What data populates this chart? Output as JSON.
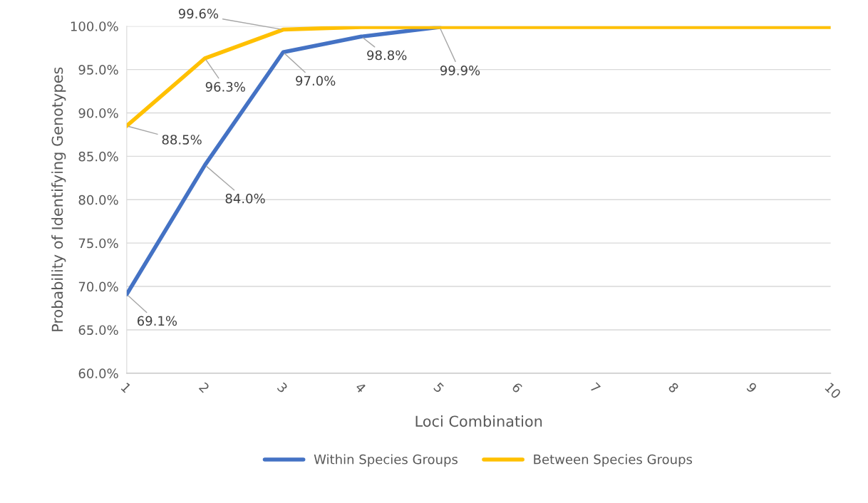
{
  "chart_data": {
    "type": "line",
    "xlabel": "Loci Combination",
    "ylabel": "Probability of Identifying Genotypes",
    "categories": [
      "1",
      "2",
      "3",
      "4",
      "5",
      "6",
      "7",
      "8",
      "9",
      "10"
    ],
    "series": [
      {
        "name": "Within Species Groups",
        "color": "#4472c4",
        "values": [
          69.1,
          84.0,
          97.0,
          98.8,
          99.9,
          null,
          null,
          null,
          null,
          null
        ],
        "value_labels": [
          "69.1%",
          "84.0%",
          "97.0%",
          "98.8%",
          "99.9%",
          null,
          null,
          null,
          null,
          null
        ]
      },
      {
        "name": "Between Species Groups",
        "color": "#ffc000",
        "values": [
          88.5,
          96.3,
          99.6,
          99.9,
          99.9,
          99.9,
          99.9,
          99.9,
          99.9,
          99.9
        ],
        "value_labels": [
          "88.5%",
          "96.3%",
          "99.6%",
          null,
          null,
          null,
          null,
          null,
          null,
          null
        ]
      }
    ],
    "ylim": [
      60,
      100
    ],
    "yticks": [
      {
        "value": 60,
        "label": "60.0%"
      },
      {
        "value": 65,
        "label": "65.0%"
      },
      {
        "value": 70,
        "label": "70.0%"
      },
      {
        "value": 75,
        "label": "75.0%"
      },
      {
        "value": 80,
        "label": "80.0%"
      },
      {
        "value": 85,
        "label": "85.0%"
      },
      {
        "value": 90,
        "label": "90.0%"
      },
      {
        "value": 95,
        "label": "95.0%"
      },
      {
        "value": 100,
        "label": "100.0%"
      }
    ],
    "grid": "y",
    "legend": "bottom",
    "marker": "none",
    "line_style": "solid"
  }
}
